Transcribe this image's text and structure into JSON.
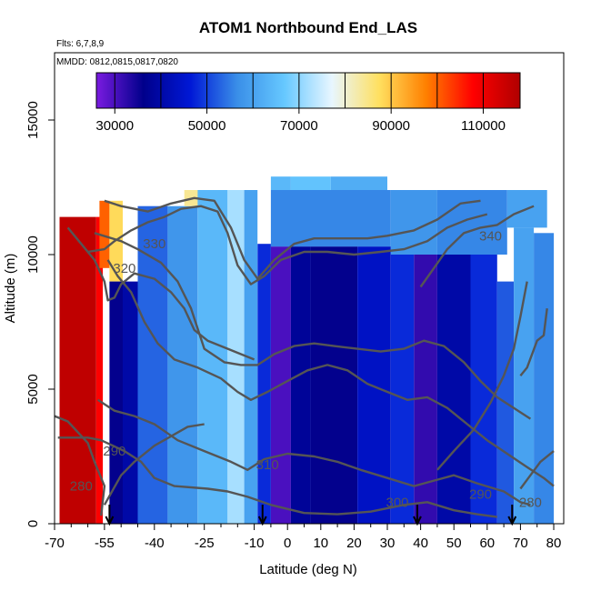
{
  "chart_data": {
    "type": "heatmap",
    "title": "ATOM1 Northbound End_LAS",
    "annotations": {
      "flights": "Flts: 6,7,8,9",
      "dates": "MMDD: 0812,0815,0817,0820"
    },
    "xlabel": "Latitude (deg N)",
    "ylabel": "Altitude (m)",
    "xlim": [
      -70,
      83
    ],
    "ylim": [
      0,
      17500
    ],
    "x_ticks": [
      -70,
      -55,
      -40,
      -25,
      -10,
      0,
      10,
      20,
      30,
      40,
      50,
      60,
      70,
      80
    ],
    "x_tick_labels": [
      "-70",
      "-55",
      "-40",
      "-25",
      "-10",
      "0",
      "10",
      "20",
      "30",
      "40",
      "50",
      "60",
      "70",
      "80"
    ],
    "x_minor_ticks": [
      -65,
      -60,
      -50,
      -45,
      -35,
      -30,
      -20,
      -15,
      -5,
      5,
      15,
      25,
      35,
      45,
      55,
      65,
      75
    ],
    "y_ticks": [
      0,
      5000,
      10000,
      15000
    ],
    "y_tick_labels": [
      "0",
      "5000",
      "10000",
      "15000"
    ],
    "colorbar": {
      "range": [
        26000,
        118000
      ],
      "ticks": [
        30000,
        50000,
        70000,
        90000,
        110000
      ],
      "tick_labels": [
        "30000",
        "50000",
        "70000",
        "90000",
        "110000"
      ],
      "breaks": [
        30000,
        40000,
        50000,
        60000,
        70000,
        80000,
        90000,
        100000,
        110000
      ],
      "colors": [
        "#7a1be0",
        "#00008b",
        "#0018d6",
        "#3a8fe8",
        "#66c8ff",
        "#e8f6ff",
        "#ffe060",
        "#ff8000",
        "#ff0000",
        "#b00000"
      ]
    },
    "columns": [
      {
        "x0": -68.5,
        "x1": -57.5,
        "z0": 0,
        "z1": 11400,
        "value": 116000
      },
      {
        "x0": -57.5,
        "x1": -55.5,
        "z0": 0,
        "z1": 11400,
        "value": 108000
      },
      {
        "x0": -56.5,
        "x1": -53.5,
        "z0": 9500,
        "z1": 12000,
        "value": 100000
      },
      {
        "x0": -53.5,
        "x1": -49.5,
        "z0": 9000,
        "z1": 12000,
        "value": 88000
      },
      {
        "x0": -53.5,
        "x1": -49.5,
        "z0": 0,
        "z1": 9000,
        "value": 36000
      },
      {
        "x0": -49.5,
        "x1": -45,
        "z0": 0,
        "z1": 9000,
        "value": 40000
      },
      {
        "x0": -45,
        "x1": -36,
        "z0": 0,
        "z1": 11800,
        "value": 53000
      },
      {
        "x0": -36,
        "x1": -27,
        "z0": 0,
        "z1": 11800,
        "value": 58000
      },
      {
        "x0": -31,
        "x1": -25,
        "z0": 11800,
        "z1": 12400,
        "value": 84000
      },
      {
        "x0": -27,
        "x1": -18,
        "z0": 0,
        "z1": 12400,
        "value": 64000
      },
      {
        "x0": -18,
        "x1": -13,
        "z0": 0,
        "z1": 12400,
        "value": 72000
      },
      {
        "x0": -13,
        "x1": -9,
        "z0": 0,
        "z1": 12400,
        "value": 60000
      },
      {
        "x0": -9,
        "x1": -5,
        "z0": 0,
        "z1": 10400,
        "value": 48000
      },
      {
        "x0": -5,
        "x1": 1,
        "z0": 0,
        "z1": 10300,
        "value": 30000
      },
      {
        "x0": 1,
        "x1": 7,
        "z0": 0,
        "z1": 10300,
        "value": 38000
      },
      {
        "x0": 7,
        "x1": 21,
        "z0": 0,
        "z1": 10300,
        "value": 36000
      },
      {
        "x0": 21,
        "x1": 31,
        "z0": 0,
        "z1": 10300,
        "value": 44000
      },
      {
        "x0": 31,
        "x1": 38,
        "z0": 0,
        "z1": 10300,
        "value": 48000
      },
      {
        "x0": 38,
        "x1": 45,
        "z0": 0,
        "z1": 10000,
        "value": 32000
      },
      {
        "x0": 45,
        "x1": 55,
        "z0": 0,
        "z1": 10000,
        "value": 40000
      },
      {
        "x0": 55,
        "x1": 63,
        "z0": 0,
        "z1": 10000,
        "value": 48000
      },
      {
        "x0": 63,
        "x1": 68,
        "z0": 0,
        "z1": 9000,
        "value": 52000
      },
      {
        "x0": 68,
        "x1": 74,
        "z0": 0,
        "z1": 11000,
        "value": 60000
      },
      {
        "x0": 74,
        "x1": 80,
        "z0": 0,
        "z1": 10800,
        "value": 56000
      },
      {
        "x0": -5,
        "x1": 31,
        "z0": 10300,
        "z1": 12400,
        "value": 56000
      },
      {
        "x0": 31,
        "x1": 45,
        "z0": 10000,
        "z1": 12400,
        "value": 58000
      },
      {
        "x0": 45,
        "x1": 66,
        "z0": 10000,
        "z1": 12400,
        "value": 56000
      },
      {
        "x0": 66,
        "x1": 78,
        "z0": 11000,
        "z1": 12400,
        "value": 60000
      },
      {
        "x0": -5,
        "x1": 1,
        "z0": 12400,
        "z1": 12900,
        "value": 64000
      },
      {
        "x0": 1,
        "x1": 13,
        "z0": 12400,
        "z1": 12900,
        "value": 66000
      },
      {
        "x0": 13,
        "x1": 30,
        "z0": 12400,
        "z1": 12900,
        "value": 62000
      }
    ],
    "contours": [
      {
        "label": "280",
        "points": [
          [
            -56,
            300
          ],
          [
            -55,
            1400
          ],
          [
            -58,
            2300
          ],
          [
            -60,
            3000
          ],
          [
            -66,
            3800
          ],
          [
            -70,
            4000
          ]
        ]
      },
      {
        "label": "290",
        "points": [
          [
            -55,
            700
          ],
          [
            -50,
            1800
          ],
          [
            -46,
            2300
          ],
          [
            -40,
            2900
          ],
          [
            -30,
            3600
          ],
          [
            -25,
            3700
          ]
        ]
      },
      {
        "label": "300",
        "points": [
          [
            -69,
            3200
          ],
          [
            -60,
            3200
          ],
          [
            -56,
            3100
          ],
          [
            -49,
            2700
          ],
          [
            -44,
            2300
          ],
          [
            -40,
            1700
          ],
          [
            -34,
            1400
          ],
          [
            -24,
            1300
          ],
          [
            -18,
            1200
          ],
          [
            -12,
            1000
          ],
          [
            -5,
            700
          ],
          [
            5,
            400
          ],
          [
            15,
            350
          ],
          [
            25,
            450
          ],
          [
            35,
            700
          ],
          [
            42,
            800
          ],
          [
            50,
            500
          ],
          [
            57,
            350
          ],
          [
            63,
            250
          ]
        ]
      },
      {
        "label": "310",
        "points": [
          [
            -57,
            4600
          ],
          [
            -52,
            4200
          ],
          [
            -46,
            4000
          ],
          [
            -40,
            3700
          ],
          [
            -33,
            3100
          ],
          [
            -25,
            2700
          ],
          [
            -17,
            2300
          ],
          [
            -12,
            2000
          ],
          [
            -7,
            2400
          ],
          [
            0,
            2600
          ],
          [
            8,
            2500
          ],
          [
            15,
            2300
          ],
          [
            22,
            2000
          ],
          [
            30,
            1700
          ],
          [
            38,
            1400
          ],
          [
            44,
            1600
          ],
          [
            50,
            1800
          ],
          [
            57,
            1500
          ],
          [
            65,
            1200
          ],
          [
            70,
            800
          ],
          [
            73,
            700
          ]
        ]
      },
      {
        "label": "320",
        "points": [
          [
            -54,
            9800
          ],
          [
            -51,
            9200
          ],
          [
            -47,
            8600
          ],
          [
            -43,
            7500
          ],
          [
            -39,
            6700
          ],
          [
            -34,
            6100
          ],
          [
            -27,
            5800
          ],
          [
            -20,
            5400
          ],
          [
            -15,
            4900
          ],
          [
            -11,
            4600
          ],
          [
            -6,
            4900
          ],
          [
            0,
            5300
          ],
          [
            6,
            5700
          ],
          [
            12,
            5900
          ],
          [
            18,
            5700
          ],
          [
            24,
            5200
          ],
          [
            30,
            4900
          ],
          [
            36,
            4600
          ],
          [
            42,
            4700
          ],
          [
            48,
            4300
          ],
          [
            54,
            3700
          ],
          [
            60,
            3100
          ],
          [
            66,
            2600
          ],
          [
            72,
            2100
          ],
          [
            77,
            1700
          ],
          [
            80,
            1400
          ]
        ]
      },
      {
        "label": "330",
        "points": [
          [
            -58,
            10800
          ],
          [
            -50,
            10500
          ],
          [
            -45,
            10200
          ],
          [
            -38,
            9700
          ],
          [
            -33,
            9000
          ],
          [
            -29,
            8000
          ],
          [
            -25,
            6500
          ],
          [
            -19,
            6000
          ],
          [
            -14,
            5900
          ],
          [
            -9,
            5900
          ],
          [
            -4,
            6300
          ],
          [
            2,
            6600
          ],
          [
            8,
            6700
          ],
          [
            14,
            6600
          ],
          [
            21,
            6500
          ],
          [
            28,
            6400
          ],
          [
            35,
            6500
          ],
          [
            41,
            6800
          ],
          [
            47,
            6600
          ],
          [
            53,
            6000
          ],
          [
            58,
            5300
          ],
          [
            63,
            4700
          ],
          [
            68,
            4300
          ],
          [
            73,
            3900
          ]
        ]
      },
      {
        "label": "340",
        "points": [
          [
            40,
            8800
          ],
          [
            44,
            9500
          ],
          [
            48,
            10200
          ],
          [
            53,
            10800
          ],
          [
            58,
            11000
          ],
          [
            63,
            11100
          ],
          [
            68,
            11500
          ],
          [
            74,
            11800
          ]
        ]
      },
      {
        "label": "",
        "points": [
          [
            -60,
            10100
          ],
          [
            -55,
            10200
          ],
          [
            -52,
            10500
          ],
          [
            -47,
            10900
          ],
          [
            -42,
            11200
          ],
          [
            -37,
            11400
          ],
          [
            -32,
            11700
          ],
          [
            -26,
            11800
          ],
          [
            -21,
            11600
          ],
          [
            -18,
            10800
          ],
          [
            -15,
            9600
          ],
          [
            -11,
            8900
          ],
          [
            -7,
            9200
          ],
          [
            -2,
            9800
          ],
          [
            5,
            10100
          ],
          [
            12,
            10100
          ],
          [
            20,
            10000
          ],
          [
            28,
            10100
          ],
          [
            35,
            10200
          ],
          [
            42,
            10500
          ],
          [
            48,
            11000
          ],
          [
            54,
            11300
          ],
          [
            60,
            11500
          ]
        ]
      },
      {
        "label": "",
        "points": [
          [
            -66,
            11000
          ],
          [
            -62,
            10400
          ],
          [
            -58,
            9800
          ],
          [
            -55,
            9000
          ],
          [
            -54,
            8300
          ],
          [
            -52,
            8400
          ],
          [
            -50,
            8900
          ],
          [
            -46,
            9300
          ],
          [
            -40,
            9100
          ],
          [
            -35,
            8600
          ],
          [
            -31,
            8000
          ],
          [
            -28,
            7200
          ],
          [
            -24,
            6800
          ],
          [
            -20,
            6600
          ],
          [
            -14,
            6300
          ],
          [
            -10,
            6100
          ]
        ]
      },
      {
        "label": "",
        "points": [
          [
            -55,
            12000
          ],
          [
            -50,
            11800
          ],
          [
            -42,
            11600
          ],
          [
            -35,
            11900
          ],
          [
            -28,
            12100
          ],
          [
            -22,
            12000
          ],
          [
            -17,
            11000
          ],
          [
            -13,
            9800
          ],
          [
            -9,
            9100
          ],
          [
            -4,
            9800
          ],
          [
            2,
            10400
          ],
          [
            8,
            10600
          ],
          [
            16,
            10600
          ],
          [
            24,
            10600
          ],
          [
            30,
            10700
          ],
          [
            38,
            10900
          ],
          [
            45,
            11300
          ],
          [
            52,
            11900
          ],
          [
            58,
            12000
          ]
        ]
      },
      {
        "label": "",
        "points": [
          [
            45,
            2000
          ],
          [
            50,
            2700
          ],
          [
            56,
            3500
          ],
          [
            61,
            4500
          ],
          [
            65,
            5500
          ],
          [
            68,
            6500
          ],
          [
            70,
            7700
          ],
          [
            72,
            9000
          ]
        ]
      },
      {
        "label": "",
        "points": [
          [
            70,
            5500
          ],
          [
            72,
            5800
          ],
          [
            75,
            6800
          ],
          [
            77,
            7000
          ],
          [
            78,
            8000
          ]
        ]
      },
      {
        "label": "",
        "points": [
          [
            70,
            1300
          ],
          [
            73,
            1800
          ],
          [
            76,
            2300
          ],
          [
            80,
            2700
          ]
        ]
      }
    ],
    "contour_labels": [
      {
        "text": "330",
        "x": -40,
        "z": 10400
      },
      {
        "text": "320",
        "x": -49,
        "z": 9500
      },
      {
        "text": "340",
        "x": 61,
        "z": 10700
      },
      {
        "text": "290",
        "x": -52,
        "z": 2700
      },
      {
        "text": "280",
        "x": -62,
        "z": 1400
      },
      {
        "text": "310",
        "x": -6,
        "z": 2200
      },
      {
        "text": "300",
        "x": 33,
        "z": 800
      },
      {
        "text": "290",
        "x": 58,
        "z": 1100
      },
      {
        "text": "280",
        "x": 73,
        "z": 800
      }
    ],
    "flight_markers_x": [
      -53.5,
      -7.5,
      39,
      67.5
    ]
  }
}
